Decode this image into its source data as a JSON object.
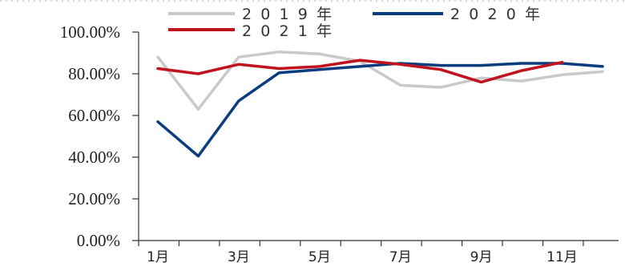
{
  "chart_data": {
    "type": "line",
    "x": [
      1,
      2,
      3,
      4,
      5,
      6,
      7,
      8,
      9,
      10,
      11,
      12
    ],
    "xtick_labels": [
      "1月",
      "3月",
      "5月",
      "7月",
      "9月",
      "11月"
    ],
    "xtick_months": [
      1,
      3,
      5,
      7,
      9,
      11
    ],
    "yticks": [
      0,
      20,
      40,
      60,
      80,
      100
    ],
    "ytick_labels": [
      "0.00%",
      "20.00%",
      "40.00%",
      "60.00%",
      "80.00%",
      "100.00%"
    ],
    "ylim": [
      0,
      100
    ],
    "grid": false,
    "legend_placement": "top",
    "series": [
      {
        "name": "2019年",
        "color": "#c9c9c9",
        "values": [
          88,
          63,
          88,
          90.5,
          89.5,
          86,
          74.5,
          73.5,
          78,
          76.5,
          79.5,
          81
        ]
      },
      {
        "name": "2020年",
        "color": "#0b3d7e",
        "values": [
          57,
          40.5,
          67,
          80.5,
          82,
          83.5,
          85,
          84,
          84,
          85,
          85,
          83.5
        ]
      },
      {
        "name": "2021年",
        "color": "#c1121f",
        "values": [
          82.5,
          80,
          84.5,
          82.5,
          83.5,
          86.5,
          84.5,
          82,
          76,
          81.5,
          85.5,
          null
        ]
      }
    ]
  }
}
